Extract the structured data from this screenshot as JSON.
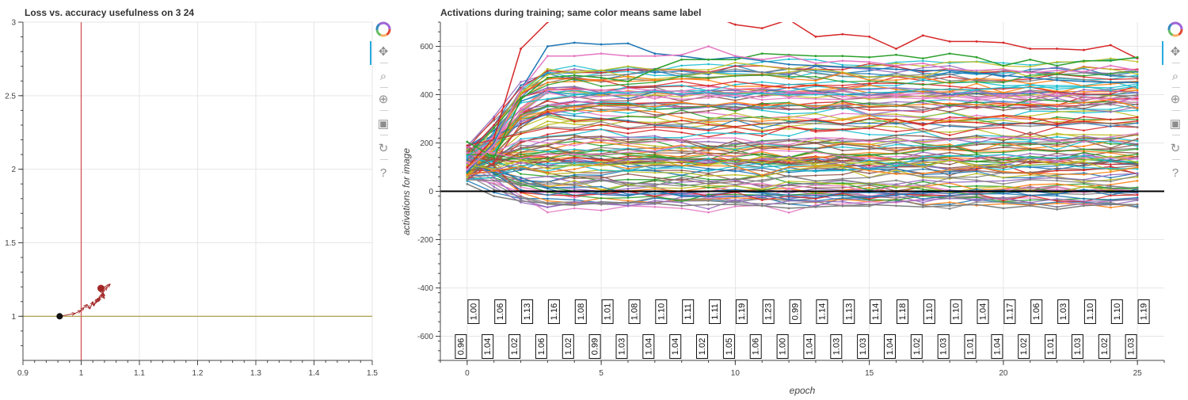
{
  "left_chart": {
    "title": "Loss vs. accuracy usefulness on 3 24",
    "x_ticks": [
      "0.9",
      "1",
      "1.1",
      "1.2",
      "1.3",
      "1.4",
      "1.5"
    ],
    "y_ticks": [
      "1",
      "1.5",
      "2",
      "2.5",
      "3"
    ],
    "colors": {
      "vline": "#d04a4a",
      "hline": "#a89838",
      "trail": "#a32626",
      "start_point": "#111111",
      "end_point": "#a32626"
    }
  },
  "chart_data": [
    {
      "type": "scatter",
      "title": "Loss vs. accuracy usefulness on 3 24",
      "xlim": [
        0.9,
        1.5
      ],
      "ylim": [
        0.7,
        3.0
      ],
      "reference_lines": {
        "x": 1.0,
        "y": 1.0
      },
      "trajectory": [
        [
          0.963,
          1.0
        ],
        [
          0.99,
          1.02
        ],
        [
          1.0,
          1.04
        ],
        [
          1.005,
          1.06
        ],
        [
          1.01,
          1.08
        ],
        [
          1.015,
          1.05
        ],
        [
          1.02,
          1.1
        ],
        [
          1.022,
          1.07
        ],
        [
          1.028,
          1.12
        ],
        [
          1.025,
          1.09
        ],
        [
          1.032,
          1.13
        ],
        [
          1.03,
          1.1
        ],
        [
          1.035,
          1.15
        ],
        [
          1.04,
          1.12
        ],
        [
          1.037,
          1.16
        ],
        [
          1.045,
          1.2
        ],
        [
          1.05,
          1.22
        ],
        [
          1.03,
          1.18
        ],
        [
          1.04,
          1.14
        ],
        [
          1.034,
          1.19
        ]
      ],
      "start_point": [
        0.963,
        1.0
      ],
      "end_point": [
        1.034,
        1.19
      ]
    },
    {
      "type": "line",
      "title": "Activations during training; same color means same label",
      "xlabel": "epoch",
      "ylabel": "activations for image",
      "xlim": [
        -1,
        26
      ],
      "ylim": [
        -700,
        700
      ],
      "x_ticks": [
        0,
        5,
        10,
        15,
        20,
        25
      ],
      "y_ticks": [
        -600,
        -400,
        -200,
        0,
        200,
        400,
        600
      ],
      "zero_line": 0,
      "epochs": [
        0,
        1,
        2,
        3,
        4,
        5,
        6,
        7,
        8,
        9,
        10,
        11,
        12,
        13,
        14,
        15,
        16,
        17,
        18,
        19,
        20,
        21,
        22,
        23,
        24,
        25
      ],
      "series_count": 110,
      "highlight_series": [
        {
          "color": "#d62728",
          "values": [
            100,
            220,
            590,
            700,
            760,
            800,
            760,
            740,
            720,
            730,
            690,
            675,
            710,
            640,
            650,
            640,
            590,
            645,
            620,
            620,
            615,
            590,
            590,
            585,
            605,
            550
          ]
        },
        {
          "color": "#1f77b4",
          "values": [
            80,
            200,
            420,
            600,
            615,
            608,
            612,
            570,
            560,
            545,
            555,
            540,
            525,
            520,
            515,
            510,
            505,
            500,
            500,
            490,
            480,
            470,
            460,
            455,
            450,
            450
          ]
        },
        {
          "color": "#2ca02c",
          "values": [
            205,
            140,
            380,
            470,
            480,
            470,
            455,
            505,
            545,
            545,
            545,
            570,
            565,
            560,
            560,
            555,
            565,
            550,
            570,
            555,
            520,
            545,
            520,
            540,
            540,
            555
          ]
        },
        {
          "color": "#e377c2",
          "values": [
            90,
            190,
            420,
            560,
            560,
            570,
            560,
            560,
            565,
            600,
            560,
            545,
            560,
            530,
            540,
            535,
            520,
            530,
            505,
            500,
            505,
            490,
            500,
            495,
            520,
            500
          ]
        },
        {
          "color": "#7f7f7f",
          "values": [
            30,
            -20,
            -40,
            -50,
            -55,
            -50,
            -45,
            -50,
            -60,
            -55,
            -55,
            -60,
            -70,
            -65,
            -60,
            -55,
            -60,
            -65,
            -60,
            -55,
            -70,
            -60,
            -75,
            -60,
            -55,
            -55
          ]
        }
      ],
      "accuracy_labels": [
        [
          "0.96",
          "1.00"
        ],
        [
          "1.04",
          "1.06"
        ],
        [
          "1.02",
          "1.13"
        ],
        [
          "1.06",
          "1.16"
        ],
        [
          "1.02",
          "1.08"
        ],
        [
          "0.99",
          "1.01"
        ],
        [
          "1.03",
          "1.08"
        ],
        [
          "1.04",
          "1.10"
        ],
        [
          "1.04",
          "1.11"
        ],
        [
          "1.02",
          "1.11"
        ],
        [
          "1.05",
          "1.19"
        ],
        [
          "1.06",
          "1.23"
        ],
        [
          "1.00",
          "0.99"
        ],
        [
          "1.04",
          "1.14"
        ],
        [
          "1.03",
          "1.13"
        ],
        [
          "1.03",
          "1.14"
        ],
        [
          "1.04",
          "1.18"
        ],
        [
          "1.02",
          "1.10"
        ],
        [
          "1.03",
          "1.10"
        ],
        [
          "1.01",
          "1.04"
        ],
        [
          "1.04",
          "1.17"
        ],
        [
          "1.02",
          "1.06"
        ],
        [
          "1.01",
          "1.03"
        ],
        [
          "1.03",
          "1.10"
        ],
        [
          "1.02",
          "1.10"
        ],
        [
          "1.03",
          "1.19"
        ]
      ]
    }
  ],
  "right_chart": {
    "title": "Activations during training; same color means same label",
    "xlabel": "epoch",
    "ylabel": "activations for image",
    "palette": [
      "#1f77b4",
      "#ff7f0e",
      "#2ca02c",
      "#d62728",
      "#9467bd",
      "#8c564b",
      "#e377c2",
      "#7f7f7f",
      "#bcbd22",
      "#17becf"
    ]
  },
  "toolbar": {
    "tools": [
      {
        "name": "bokeh-logo-icon",
        "glyph": "✿"
      },
      {
        "name": "pan-tool-icon",
        "glyph": "✥"
      },
      {
        "name": "box-zoom-tool-icon",
        "glyph": "⌕"
      },
      {
        "name": "wheel-zoom-tool-icon",
        "glyph": "⊕"
      },
      {
        "name": "save-tool-icon",
        "glyph": "▣"
      },
      {
        "name": "reset-tool-icon",
        "glyph": "↻"
      },
      {
        "name": "help-tool-icon",
        "glyph": "?"
      }
    ]
  }
}
